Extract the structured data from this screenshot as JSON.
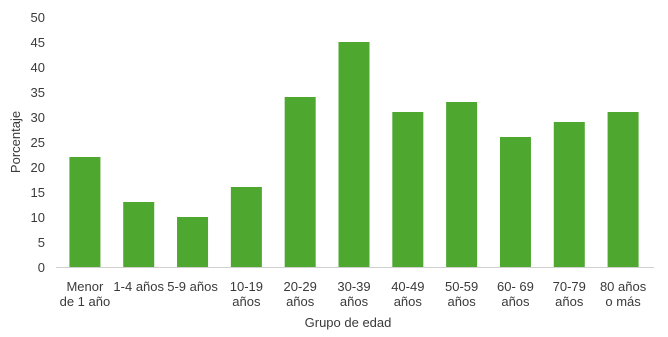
{
  "chart_data": {
    "type": "bar",
    "title": "",
    "xlabel": "Grupo de edad",
    "ylabel": "Porcentaje",
    "ylim": [
      0,
      50
    ],
    "yticks": [
      0,
      5,
      10,
      15,
      20,
      25,
      30,
      35,
      40,
      45,
      50
    ],
    "grid": false,
    "bar_color": "#4ea72e",
    "categories": [
      [
        "Menor",
        "de 1 año"
      ],
      [
        "1-4 años"
      ],
      [
        "5-9 años"
      ],
      [
        "10-19",
        "años"
      ],
      [
        "20-29",
        "años"
      ],
      [
        "30-39",
        "años"
      ],
      [
        "40-49",
        "años"
      ],
      [
        "50-59",
        "años"
      ],
      [
        "60- 69",
        "años"
      ],
      [
        "70-79",
        "años"
      ],
      [
        "80 años",
        "o más"
      ]
    ],
    "values": [
      22,
      13,
      10,
      16,
      34,
      45,
      31,
      33,
      26,
      29,
      31
    ]
  }
}
